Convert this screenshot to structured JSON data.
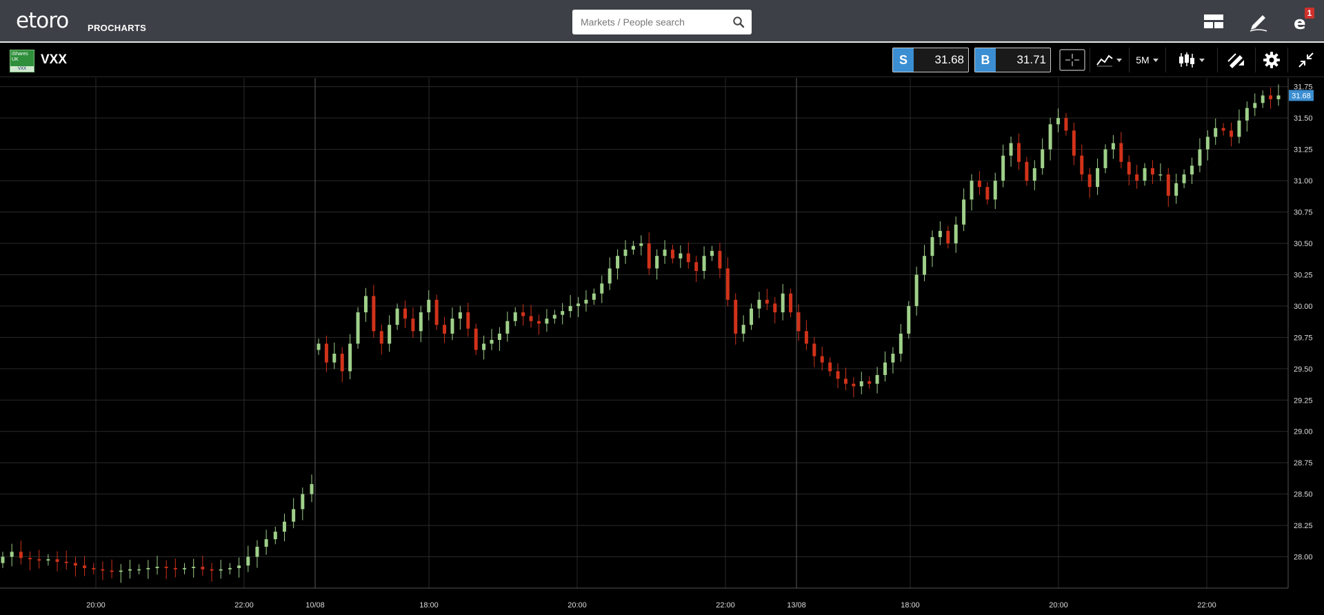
{
  "header": {
    "logo_text": "etoro",
    "logo_sub": "PROCHARTS",
    "search_placeholder": "Markets / People search",
    "notification_count": "1"
  },
  "instrument": {
    "logo_text": "iShares UK",
    "logo_bottom": "VXX",
    "symbol": "VXX",
    "sell_label": "S",
    "sell_price": "31.68",
    "buy_label": "B",
    "buy_price": "31.71",
    "timeframe": "5M"
  },
  "colors": {
    "up": "#9fd08a",
    "down": "#d0321a",
    "price_tag": "#3b8ed2",
    "grid": "#2a2a2a"
  },
  "chart_data": {
    "type": "candlestick",
    "y_ticks": [
      "31.75",
      "31.50",
      "31.25",
      "31.00",
      "30.75",
      "30.50",
      "30.25",
      "30.00",
      "29.75",
      "29.50",
      "29.25",
      "29.00",
      "28.75",
      "28.50",
      "28.25",
      "28.00"
    ],
    "ylim": [
      27.75,
      31.82
    ],
    "current_price": "31.68",
    "x_ticks": [
      "20:00",
      "22:00",
      "10/08",
      "18:00",
      "20:00",
      "22:00",
      "13/08",
      "18:00",
      "20:00",
      "22:00"
    ],
    "series": [
      {
        "segment": "session-1",
        "prices": [
          28.0,
          28.04,
          27.99,
          27.98,
          27.97,
          27.98,
          27.96,
          27.95,
          27.93,
          27.91,
          27.9,
          27.89,
          27.88,
          27.89,
          27.9,
          27.9,
          27.91,
          27.92,
          27.91,
          27.9,
          27.91,
          27.92,
          27.9,
          27.89,
          27.9,
          27.91,
          27.93,
          28.0,
          28.08,
          28.14,
          28.2,
          28.28,
          28.38,
          28.5,
          28.58
        ]
      },
      {
        "segment": "session-2",
        "prices": [
          29.7,
          29.55,
          29.62,
          29.48,
          29.7,
          29.95,
          30.08,
          29.8,
          29.7,
          29.85,
          29.98,
          29.9,
          29.8,
          29.95,
          30.05,
          29.85,
          29.78,
          29.9,
          29.95,
          29.82,
          29.65,
          29.7,
          29.73,
          29.78,
          29.88,
          29.95,
          29.92,
          29.88,
          29.86,
          29.9,
          29.93,
          29.96,
          30.0,
          30.02,
          30.05,
          30.1,
          30.18,
          30.3,
          30.4,
          30.45,
          30.48,
          30.5,
          30.3,
          30.4,
          30.45,
          30.38,
          30.42,
          30.35,
          30.28,
          30.4,
          30.44,
          30.3,
          30.05,
          29.78,
          29.85,
          29.98,
          30.05,
          30.02,
          29.95,
          30.1,
          29.95,
          29.8,
          29.7,
          29.6,
          29.55,
          29.48,
          29.42,
          29.38,
          29.36,
          29.4,
          29.38,
          29.45,
          29.55,
          29.62,
          29.78,
          30.0,
          30.25,
          30.4,
          30.55,
          30.6,
          30.5,
          30.65,
          30.85,
          31.0,
          30.95,
          30.85,
          31.0,
          31.2,
          31.3,
          31.15,
          31.0,
          31.1,
          31.25,
          31.45,
          31.5,
          31.4,
          31.2,
          31.05,
          30.95,
          31.1,
          31.25,
          31.3,
          31.15,
          31.05,
          31.0,
          31.1,
          31.05,
          31.05,
          30.88,
          30.98,
          31.05,
          31.12,
          31.25,
          31.35,
          31.42,
          31.4,
          31.35,
          31.48,
          31.58,
          31.62,
          31.68,
          31.65,
          31.68
        ]
      }
    ]
  }
}
